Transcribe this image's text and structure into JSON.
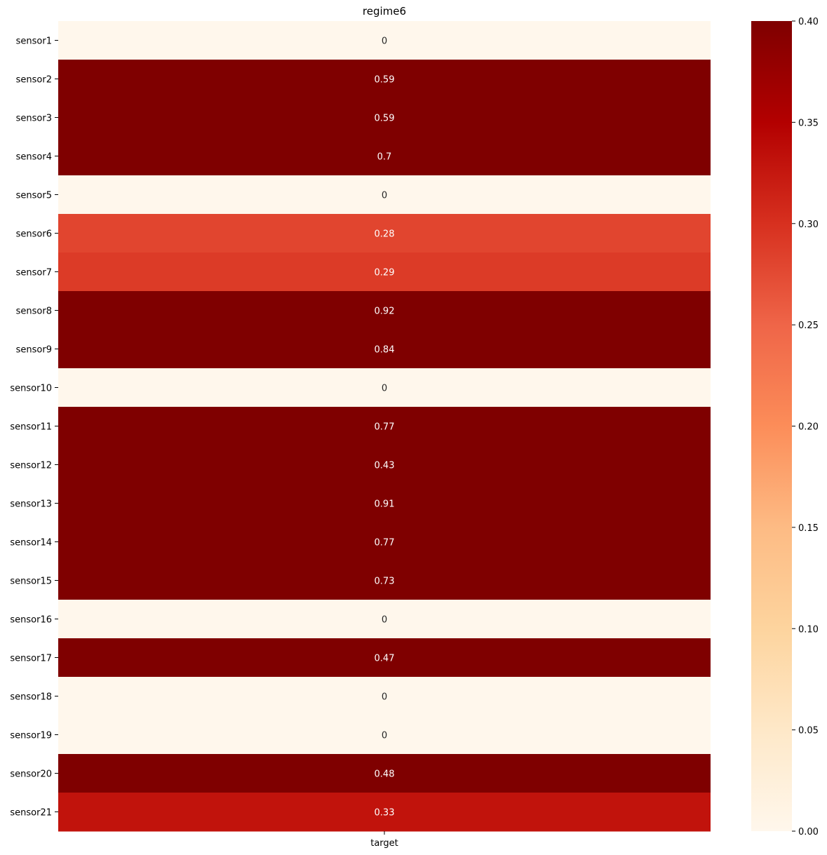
{
  "chart_data": {
    "type": "heatmap",
    "title": "regime6",
    "xlabel": "",
    "ylabel": "",
    "columns": [
      "target"
    ],
    "rows": [
      "sensor1",
      "sensor2",
      "sensor3",
      "sensor4",
      "sensor5",
      "sensor6",
      "sensor7",
      "sensor8",
      "sensor9",
      "sensor10",
      "sensor11",
      "sensor12",
      "sensor13",
      "sensor14",
      "sensor15",
      "sensor16",
      "sensor17",
      "sensor18",
      "sensor19",
      "sensor20",
      "sensor21"
    ],
    "values": [
      0,
      0.59,
      0.59,
      0.7,
      0,
      0.28,
      0.29,
      0.92,
      0.84,
      0,
      0.77,
      0.43,
      0.91,
      0.77,
      0.73,
      0,
      0.47,
      0,
      0,
      0.48,
      0.33
    ],
    "value_labels": [
      "0",
      "0.59",
      "0.59",
      "0.7",
      "0",
      "0.28",
      "0.29",
      "0.92",
      "0.84",
      "0",
      "0.77",
      "0.43",
      "0.91",
      "0.77",
      "0.73",
      "0",
      "0.47",
      "0",
      "0",
      "0.48",
      "0.33"
    ],
    "colorbar": {
      "min": 0.0,
      "max": 0.4,
      "ticks": [
        0.0,
        0.05,
        0.1,
        0.15,
        0.2,
        0.25,
        0.3,
        0.35,
        0.4
      ],
      "tick_labels": [
        "0.00",
        "0.05",
        "0.10",
        "0.15",
        "0.20",
        "0.25",
        "0.30",
        "0.35",
        "0.40"
      ],
      "colormap": "OrRd",
      "colors": [
        "#fff7ec",
        "#fee8c8",
        "#fdd49e",
        "#fdbb84",
        "#fc8d59",
        "#ef6548",
        "#d7301f",
        "#b30000",
        "#7f0000"
      ]
    },
    "grid": false
  }
}
